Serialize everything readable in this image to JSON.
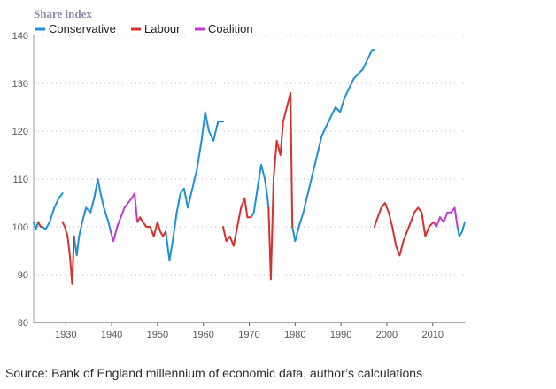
{
  "source_note": "Source: Bank of England millennium of economic data, author’s calculations",
  "chart_data": {
    "type": "line",
    "ylabel": "Share index",
    "ylim": [
      80,
      140
    ],
    "xlim": [
      1923,
      2017
    ],
    "yticks": [
      80,
      90,
      100,
      110,
      120,
      130,
      140
    ],
    "xticks": [
      1930,
      1940,
      1950,
      1960,
      1970,
      1980,
      1990,
      2000,
      2010
    ],
    "grid": "horizontal dotted",
    "legend_position": "top-left",
    "colors": {
      "Conservative": "#1f8fd6",
      "Labour": "#d8302b",
      "Coalition": "#c23ad1"
    },
    "legend": [
      "Conservative",
      "Labour",
      "Coalition"
    ],
    "series": [
      {
        "name": "Conservative",
        "segments": [
          [
            [
              1923.0,
              101
            ],
            [
              1923.5,
              99.5
            ],
            [
              1924.0,
              101
            ]
          ],
          [
            [
              1924.9,
              100
            ],
            [
              1925.6,
              99.5
            ],
            [
              1926.5,
              101
            ],
            [
              1927.5,
              104
            ],
            [
              1928.5,
              106
            ],
            [
              1929.3,
              107
            ]
          ],
          [
            [
              1931.8,
              98
            ],
            [
              1932.4,
              94
            ],
            [
              1932.9,
              98
            ],
            [
              1933.6,
              101
            ],
            [
              1934.4,
              104
            ],
            [
              1935.4,
              103
            ],
            [
              1936.2,
              106
            ],
            [
              1937.0,
              110
            ],
            [
              1937.6,
              107
            ],
            [
              1938.3,
              104
            ],
            [
              1939.3,
              101
            ],
            [
              1939.8,
              99
            ]
          ],
          [
            [
              1951.8,
              99
            ],
            [
              1952.6,
              93
            ],
            [
              1953.3,
              97
            ],
            [
              1954.2,
              103
            ],
            [
              1955.0,
              107
            ],
            [
              1955.8,
              108
            ],
            [
              1956.6,
              104
            ],
            [
              1957.6,
              108
            ],
            [
              1958.6,
              112
            ],
            [
              1959.6,
              118
            ],
            [
              1960.4,
              124
            ],
            [
              1961.2,
              120
            ],
            [
              1962.2,
              118
            ],
            [
              1963.2,
              122
            ],
            [
              1964.3,
              122
            ]
          ],
          [
            [
              1970.4,
              102
            ],
            [
              1971.0,
              103
            ],
            [
              1971.8,
              108
            ],
            [
              1972.6,
              113
            ],
            [
              1973.4,
              110
            ],
            [
              1974.0,
              106
            ],
            [
              1974.2,
              104
            ]
          ],
          [
            [
              1979.4,
              100
            ],
            [
              1980.0,
              97
            ],
            [
              1980.8,
              100
            ],
            [
              1981.8,
              103
            ],
            [
              1982.8,
              107
            ],
            [
              1983.8,
              111
            ],
            [
              1984.8,
              115
            ],
            [
              1985.8,
              119
            ],
            [
              1986.8,
              121
            ],
            [
              1987.8,
              123
            ],
            [
              1988.8,
              125
            ],
            [
              1989.8,
              124
            ],
            [
              1990.8,
              127
            ],
            [
              1991.8,
              129
            ],
            [
              1992.8,
              131
            ],
            [
              1993.8,
              132
            ],
            [
              1994.8,
              133
            ],
            [
              1995.8,
              135
            ],
            [
              1996.8,
              137
            ],
            [
              1997.3,
              137
            ]
          ],
          [
            [
              2015.4,
              100
            ],
            [
              2015.8,
              98
            ],
            [
              2016.4,
              99
            ],
            [
              2017.0,
              101
            ]
          ]
        ]
      },
      {
        "name": "Labour",
        "segments": [
          [
            [
              1924.0,
              101
            ],
            [
              1924.5,
              100
            ],
            [
              1924.9,
              100
            ]
          ],
          [
            [
              1929.3,
              101
            ],
            [
              1929.8,
              100
            ],
            [
              1930.4,
              98
            ],
            [
              1930.9,
              94
            ],
            [
              1931.4,
              88
            ],
            [
              1931.8,
              98
            ]
          ],
          [
            [
              1945.6,
              101
            ],
            [
              1946.2,
              102
            ],
            [
              1946.8,
              101
            ],
            [
              1947.6,
              100
            ],
            [
              1948.4,
              100
            ],
            [
              1949.2,
              98
            ],
            [
              1950.0,
              101
            ],
            [
              1950.6,
              99
            ],
            [
              1951.2,
              98
            ],
            [
              1951.8,
              99
            ]
          ],
          [
            [
              1964.3,
              100
            ],
            [
              1965.0,
              97
            ],
            [
              1965.8,
              98
            ],
            [
              1966.6,
              96
            ],
            [
              1967.4,
              100
            ],
            [
              1968.2,
              104
            ],
            [
              1969.0,
              106
            ],
            [
              1969.6,
              102
            ],
            [
              1970.4,
              102
            ]
          ],
          [
            [
              1974.2,
              104
            ],
            [
              1974.7,
              89
            ],
            [
              1975.3,
              110
            ],
            [
              1976.0,
              118
            ],
            [
              1976.8,
              115
            ],
            [
              1977.4,
              122
            ],
            [
              1978.2,
              125
            ],
            [
              1979.0,
              128
            ],
            [
              1979.4,
              100
            ]
          ],
          [
            [
              1997.3,
              100
            ],
            [
              1998.0,
              102
            ],
            [
              1998.8,
              104
            ],
            [
              1999.6,
              105
            ],
            [
              2000.4,
              103
            ],
            [
              2001.2,
              100
            ],
            [
              2002.0,
              96
            ],
            [
              2002.8,
              94
            ],
            [
              2003.6,
              97
            ],
            [
              2004.4,
              99
            ],
            [
              2005.2,
              101
            ],
            [
              2006.0,
              103
            ],
            [
              2006.8,
              104
            ],
            [
              2007.6,
              103
            ],
            [
              2008.4,
              98
            ],
            [
              2009.2,
              100
            ],
            [
              2010.2,
              101
            ]
          ]
        ]
      },
      {
        "name": "Coalition",
        "segments": [
          [
            [
              1939.8,
              99
            ],
            [
              1940.4,
              97
            ],
            [
              1941.2,
              100
            ],
            [
              1942.0,
              102
            ],
            [
              1942.8,
              104
            ],
            [
              1943.6,
              105
            ],
            [
              1944.4,
              106
            ],
            [
              1945.0,
              107
            ],
            [
              1945.6,
              101
            ]
          ],
          [
            [
              2010.2,
              101
            ],
            [
              2010.8,
              100
            ],
            [
              2011.6,
              102
            ],
            [
              2012.4,
              101
            ],
            [
              2013.2,
              103
            ],
            [
              2014.0,
              103
            ],
            [
              2014.8,
              104
            ],
            [
              2015.4,
              100
            ]
          ]
        ]
      }
    ]
  }
}
